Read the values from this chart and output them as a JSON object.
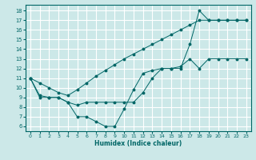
{
  "xlabel": "Humidex (Indice chaleur)",
  "bg_color": "#cce8e8",
  "line_color": "#006666",
  "grid_color": "#ffffff",
  "xlim": [
    -0.5,
    23.5
  ],
  "ylim": [
    5.5,
    18.6
  ],
  "xticks": [
    0,
    1,
    2,
    3,
    4,
    5,
    6,
    7,
    8,
    9,
    10,
    11,
    12,
    13,
    14,
    15,
    16,
    17,
    18,
    19,
    20,
    21,
    22,
    23
  ],
  "yticks": [
    6,
    7,
    8,
    9,
    10,
    11,
    12,
    13,
    14,
    15,
    16,
    17,
    18
  ],
  "line1_x": [
    0,
    1,
    2,
    3,
    4,
    5,
    6,
    7,
    8,
    9,
    10,
    11,
    12,
    13,
    14,
    15,
    16,
    17,
    18,
    19,
    20,
    21,
    22,
    23
  ],
  "line1_y": [
    11,
    9,
    9,
    9,
    8.5,
    7,
    7,
    6.5,
    6,
    6,
    7.8,
    9.8,
    11.5,
    11.8,
    12,
    12,
    12,
    14.5,
    18,
    17,
    17,
    17,
    17,
    17
  ],
  "line2_x": [
    0,
    1,
    2,
    3,
    4,
    5,
    6,
    7,
    8,
    9,
    10,
    11,
    12,
    13,
    14,
    15,
    16,
    17,
    18,
    19,
    20,
    21,
    22,
    23
  ],
  "line2_y": [
    11,
    10.5,
    10.0,
    9.5,
    9.2,
    9.8,
    10.5,
    11.2,
    11.8,
    12.4,
    13.0,
    13.5,
    14.0,
    14.5,
    15.0,
    15.5,
    16.0,
    16.5,
    17.0,
    17.0,
    17.0,
    17.0,
    17.0,
    17.0
  ],
  "line3_x": [
    0,
    1,
    2,
    3,
    4,
    5,
    6,
    7,
    8,
    9,
    10,
    11,
    12,
    13,
    14,
    15,
    16,
    17,
    18,
    19,
    20,
    21,
    22,
    23
  ],
  "line3_y": [
    11,
    9.2,
    9.0,
    9.0,
    8.5,
    8.2,
    8.5,
    8.5,
    8.5,
    8.5,
    8.5,
    8.5,
    9.5,
    11.0,
    12.0,
    12.0,
    12.2,
    13.0,
    12.0,
    13.0,
    13.0,
    13.0,
    13.0,
    13.0
  ]
}
